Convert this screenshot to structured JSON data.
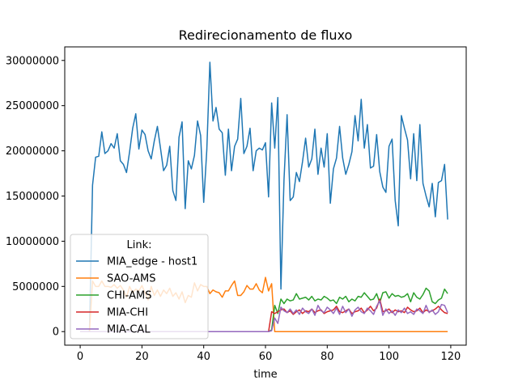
{
  "chart_data": {
    "type": "line",
    "title": "Redirecionamento de fluxo",
    "xlabel": "time",
    "ylabel": "",
    "xlim": [
      -5,
      125
    ],
    "ylim": [
      -1500000,
      31500000
    ],
    "xticks": [
      0,
      20,
      40,
      60,
      80,
      100,
      120
    ],
    "yticks": [
      0,
      5000000,
      10000000,
      15000000,
      20000000,
      25000000,
      30000000
    ],
    "grid": false,
    "legend": {
      "title": "Link:",
      "placement": "lower-left"
    },
    "x_start": 0,
    "x_step": 1,
    "series": [
      {
        "name": "MIA_edge - host1",
        "color": "#1f77b4",
        "values": [
          0,
          0,
          0,
          0,
          16200000,
          19300000,
          19400000,
          22100000,
          19700000,
          20000000,
          20800000,
          20300000,
          21900000,
          18900000,
          18500000,
          17600000,
          19900000,
          22500000,
          24100000,
          20200000,
          22300000,
          21800000,
          20000000,
          19100000,
          21100000,
          22700000,
          20300000,
          17800000,
          18400000,
          20500000,
          15600000,
          14500000,
          21500000,
          23200000,
          13600000,
          18900000,
          18000000,
          19500000,
          23300000,
          21700000,
          14300000,
          20100000,
          29800000,
          23300000,
          24800000,
          22400000,
          22000000,
          17300000,
          22400000,
          17800000,
          20500000,
          21300000,
          25800000,
          19700000,
          20500000,
          22500000,
          17800000,
          20000000,
          20300000,
          20100000,
          20900000,
          14900000,
          25300000,
          20300000,
          25900000,
          4700000,
          16800000,
          24000000,
          14500000,
          14900000,
          17600000,
          16600000,
          18800000,
          21400000,
          18200000,
          19100000,
          22400000,
          17400000,
          20300000,
          18200000,
          21900000,
          14200000,
          18000000,
          19200000,
          22700000,
          19200000,
          17400000,
          18500000,
          19900000,
          23900000,
          21100000,
          25700000,
          20300000,
          22900000,
          18100000,
          18300000,
          21800000,
          17700000,
          16000000,
          15400000,
          20500000,
          21300000,
          14500000,
          11700000,
          23900000,
          22500000,
          21200000,
          16900000,
          21900000,
          16700000,
          22900000,
          16400000,
          15000000,
          13800000,
          16400000,
          12700000,
          16500000,
          16700000,
          18500000,
          12400000
        ]
      },
      {
        "name": "SAO-AMS",
        "color": "#ff7f0e",
        "values": [
          0,
          0,
          0,
          0,
          5600000,
          5000000,
          5000000,
          5600000,
          5000000,
          5000000,
          4900000,
          5200000,
          4800000,
          5100000,
          4600000,
          3800000,
          5000000,
          4300000,
          4700000,
          4500000,
          5100000,
          4300000,
          3500000,
          5000000,
          4000000,
          4600000,
          3900000,
          4600000,
          4200000,
          4800000,
          3900000,
          4300000,
          3600000,
          4400000,
          3200000,
          4000000,
          3800000,
          5400000,
          4500000,
          5200000,
          5000000,
          5000000,
          4200000,
          4600000,
          4400000,
          4300000,
          3800000,
          4500000,
          4500000,
          5100000,
          5600000,
          4000000,
          4000000,
          4400000,
          5100000,
          4700000,
          4700000,
          5300000,
          4600000,
          4300000,
          6000000,
          4500000,
          5300000,
          0,
          0,
          0,
          0,
          0,
          0,
          0,
          0,
          0,
          0,
          0,
          0,
          0,
          0,
          0,
          0,
          0,
          0,
          0,
          0,
          0,
          0,
          0,
          0,
          0,
          0,
          0,
          0,
          0,
          0,
          0,
          0,
          0,
          0,
          0,
          0,
          0,
          0,
          0,
          0,
          0,
          0,
          0,
          0,
          0,
          0,
          0,
          0,
          0,
          0,
          0,
          0,
          0,
          0,
          0,
          0,
          0
        ]
      },
      {
        "name": "CHI-AMS",
        "color": "#2ca02c",
        "values": [
          0,
          0,
          0,
          0,
          0,
          0,
          0,
          0,
          0,
          0,
          0,
          0,
          0,
          0,
          0,
          0,
          0,
          0,
          0,
          0,
          0,
          0,
          0,
          0,
          0,
          0,
          0,
          0,
          0,
          0,
          0,
          0,
          0,
          0,
          0,
          0,
          0,
          0,
          0,
          0,
          0,
          0,
          0,
          0,
          0,
          0,
          0,
          0,
          0,
          0,
          0,
          0,
          0,
          0,
          0,
          0,
          0,
          0,
          0,
          0,
          0,
          0,
          200000,
          2900000,
          2000000,
          3600000,
          3100000,
          3600000,
          3400000,
          3500000,
          4200000,
          3600000,
          3700000,
          3800000,
          3500000,
          3900000,
          3400000,
          3600000,
          3500000,
          3900000,
          3700000,
          3400000,
          3500000,
          3100000,
          3800000,
          3600000,
          3900000,
          3300000,
          3600000,
          3400000,
          3900000,
          3800000,
          4300000,
          3900000,
          3500000,
          3600000,
          4200000,
          3200000,
          4300000,
          4400000,
          3700000,
          4200000,
          3900000,
          4000000,
          3800000,
          3900000,
          4200000,
          3300000,
          4300000,
          3800000,
          3600000,
          4100000,
          4800000,
          4500000,
          3300000,
          3100000,
          3500000,
          3700000,
          4700000,
          4200000
        ]
      },
      {
        "name": "MIA-CHI",
        "color": "#d62728",
        "values": [
          0,
          0,
          0,
          0,
          0,
          0,
          0,
          0,
          0,
          0,
          0,
          0,
          0,
          0,
          0,
          0,
          0,
          0,
          0,
          0,
          0,
          0,
          0,
          0,
          0,
          0,
          0,
          0,
          0,
          0,
          0,
          0,
          0,
          0,
          0,
          0,
          0,
          0,
          0,
          0,
          0,
          0,
          0,
          0,
          0,
          0,
          0,
          0,
          0,
          0,
          0,
          0,
          0,
          0,
          0,
          0,
          0,
          0,
          0,
          0,
          0,
          0,
          2200000,
          2000000,
          2200000,
          2400000,
          2500000,
          2100000,
          2300000,
          1900000,
          2200000,
          2400000,
          2000000,
          2300000,
          2200000,
          2500000,
          2100000,
          2300000,
          2400000,
          2000000,
          2200000,
          2300000,
          2400000,
          2800000,
          2200000,
          2100000,
          2300000,
          2500000,
          2000000,
          2200000,
          2300000,
          2600000,
          2100000,
          2400000,
          2800000,
          2300000,
          2600000,
          3600000,
          2200000,
          2300000,
          2500000,
          2100000,
          2400000,
          2200000,
          2300000,
          2100000,
          2700000,
          2400000,
          2200000,
          2300000,
          2600000,
          2100000,
          2400000,
          2200000,
          2300000,
          2500000,
          2800000,
          2400000,
          2100000,
          2000000
        ]
      },
      {
        "name": "MIA-CAL",
        "color": "#9467bd",
        "values": [
          0,
          0,
          0,
          0,
          0,
          0,
          0,
          0,
          0,
          0,
          0,
          0,
          0,
          0,
          0,
          0,
          0,
          0,
          0,
          0,
          0,
          0,
          0,
          0,
          0,
          0,
          0,
          0,
          0,
          0,
          0,
          0,
          0,
          0,
          0,
          0,
          0,
          0,
          0,
          0,
          0,
          0,
          0,
          0,
          0,
          0,
          0,
          0,
          0,
          0,
          0,
          0,
          0,
          0,
          0,
          0,
          0,
          0,
          0,
          0,
          0,
          0,
          100000,
          1500000,
          900000,
          2700000,
          2300000,
          2100000,
          2500000,
          2000000,
          2400000,
          1900000,
          2600000,
          2200000,
          2000000,
          2500000,
          1800000,
          2900000,
          2300000,
          2100000,
          2700000,
          2400000,
          2000000,
          2600000,
          1900000,
          2800000,
          2100000,
          2500000,
          1700000,
          2400000,
          2700000,
          2200000,
          2000000,
          2600000,
          2300000,
          1900000,
          2800000,
          3400000,
          1800000,
          2500000,
          2000000,
          2300000,
          1800000,
          2400000,
          2100000,
          2600000,
          2000000,
          2200000,
          1900000,
          2500000,
          2300000,
          2000000,
          2900000,
          2100000,
          2400000,
          1900000,
          2200000,
          3000000,
          2900000,
          2100000
        ]
      }
    ]
  }
}
